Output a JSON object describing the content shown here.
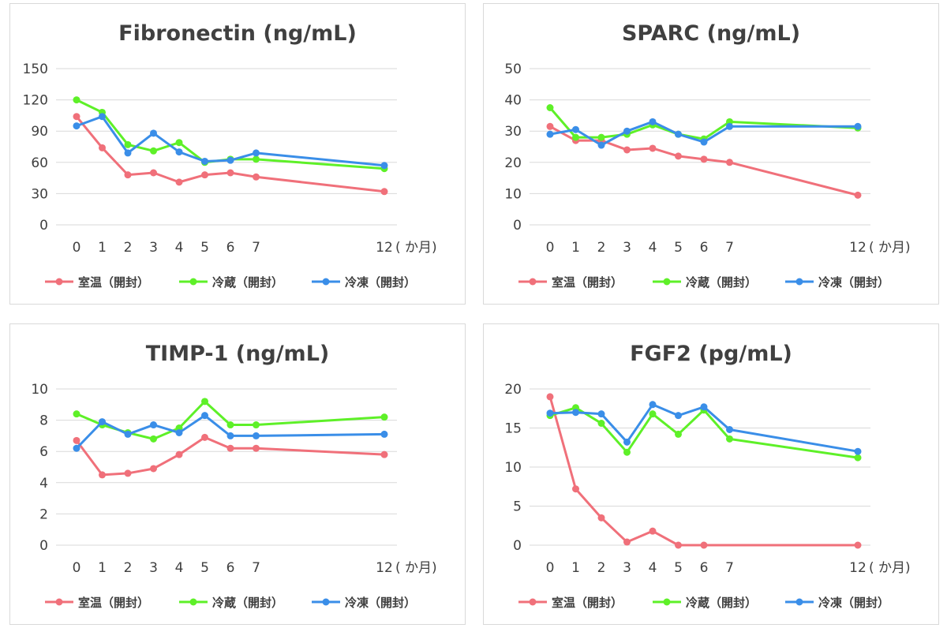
{
  "chart_data": [
    {
      "type": "line",
      "title": "Fibronectin (ng/mL)",
      "x": [
        0,
        1,
        2,
        3,
        4,
        5,
        6,
        7,
        12
      ],
      "x_tick_labels": [
        "0",
        "1",
        "2",
        "3",
        "4",
        "5",
        "6",
        "7",
        "12"
      ],
      "x_unit": "( か月)",
      "ylim": [
        0,
        150
      ],
      "y_ticks": [
        0,
        30,
        60,
        90,
        120,
        150
      ],
      "grid": true,
      "legend_position": "bottom",
      "series": [
        {
          "name": "室温（開封）",
          "color": "#f0707a",
          "values": [
            104,
            74,
            48,
            50,
            41,
            48,
            50,
            46,
            32
          ]
        },
        {
          "name": "冷蔵（開封）",
          "color": "#5ef028",
          "values": [
            120,
            108,
            77,
            71,
            79,
            60,
            63,
            63,
            54
          ]
        },
        {
          "name": "冷凍（開封）",
          "color": "#3a8ee8",
          "values": [
            95,
            104,
            69,
            88,
            70,
            61,
            62,
            69,
            57
          ]
        }
      ]
    },
    {
      "type": "line",
      "title": "SPARC (ng/mL)",
      "x": [
        0,
        1,
        2,
        3,
        4,
        5,
        6,
        7,
        12
      ],
      "x_tick_labels": [
        "0",
        "1",
        "2",
        "3",
        "4",
        "5",
        "6",
        "7",
        "12"
      ],
      "x_unit": "( か月)",
      "ylim": [
        0,
        50
      ],
      "y_ticks": [
        0,
        10,
        20,
        30,
        40,
        50
      ],
      "grid": true,
      "legend_position": "bottom",
      "series": [
        {
          "name": "室温（開封）",
          "color": "#f0707a",
          "values": [
            31.5,
            27,
            27,
            24,
            24.5,
            22,
            21,
            20,
            9.5
          ]
        },
        {
          "name": "冷蔵（開封）",
          "color": "#5ef028",
          "values": [
            37.5,
            28,
            28,
            29,
            32,
            29,
            27.5,
            33,
            31
          ]
        },
        {
          "name": "冷凍（開封）",
          "color": "#3a8ee8",
          "values": [
            29,
            30.5,
            25.5,
            30,
            33,
            29,
            26.5,
            31.5,
            31.5
          ]
        }
      ]
    },
    {
      "type": "line",
      "title": "TIMP-1 (ng/mL)",
      "x": [
        0,
        1,
        2,
        3,
        4,
        5,
        6,
        7,
        12
      ],
      "x_tick_labels": [
        "0",
        "1",
        "2",
        "3",
        "4",
        "5",
        "6",
        "7",
        "12"
      ],
      "x_unit": "( か月)",
      "ylim": [
        0,
        10
      ],
      "y_ticks": [
        0,
        2,
        4,
        6,
        8,
        10
      ],
      "grid": true,
      "legend_position": "bottom",
      "series": [
        {
          "name": "室温（開封）",
          "color": "#f0707a",
          "values": [
            6.7,
            4.5,
            4.6,
            4.9,
            5.8,
            6.9,
            6.2,
            6.2,
            5.8
          ]
        },
        {
          "name": "冷蔵（開封）",
          "color": "#5ef028",
          "values": [
            8.4,
            7.7,
            7.2,
            6.8,
            7.5,
            9.2,
            7.7,
            7.7,
            8.2
          ]
        },
        {
          "name": "冷凍（開封）",
          "color": "#3a8ee8",
          "values": [
            6.2,
            7.9,
            7.1,
            7.7,
            7.2,
            8.3,
            7.0,
            7.0,
            7.1
          ]
        }
      ]
    },
    {
      "type": "line",
      "title": "FGF2 (pg/mL)",
      "x": [
        0,
        1,
        2,
        3,
        4,
        5,
        6,
        7,
        12
      ],
      "x_tick_labels": [
        "0",
        "1",
        "2",
        "3",
        "4",
        "5",
        "6",
        "7",
        "12"
      ],
      "x_unit": "( か月)",
      "ylim": [
        0,
        20
      ],
      "y_ticks": [
        0,
        5,
        10,
        15,
        20
      ],
      "grid": true,
      "legend_position": "bottom",
      "series": [
        {
          "name": "室温（開封）",
          "color": "#f0707a",
          "values": [
            19,
            7.2,
            3.5,
            0.4,
            1.8,
            0,
            0,
            null,
            0
          ]
        },
        {
          "name": "冷蔵（開封）",
          "color": "#5ef028",
          "values": [
            16.6,
            17.6,
            15.6,
            11.9,
            16.8,
            14.2,
            17.3,
            13.6,
            11.2
          ]
        },
        {
          "name": "冷凍（開封）",
          "color": "#3a8ee8",
          "values": [
            16.9,
            17.0,
            16.8,
            13.2,
            18.0,
            16.6,
            17.7,
            14.8,
            12.0
          ]
        }
      ]
    }
  ]
}
